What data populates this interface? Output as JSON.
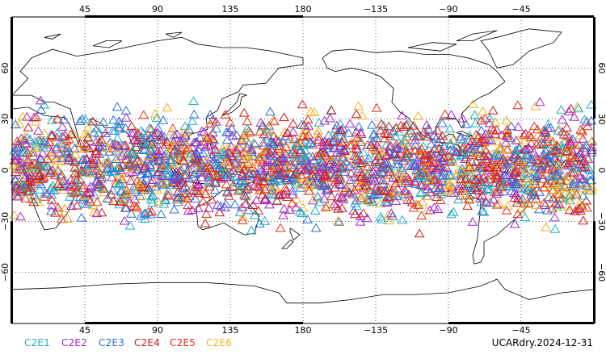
{
  "map": {
    "projection": "cylindrical-equidistant",
    "center_longitude": 180,
    "lat_range": [
      -90,
      90
    ],
    "lon_range": [
      0,
      360
    ],
    "grid": "dotted",
    "coastline_color": "#000000",
    "top_ticks": [
      "45",
      "90",
      "135",
      "180",
      "−135",
      "−90",
      "−45"
    ],
    "bottom_ticks": [
      "45",
      "90",
      "135",
      "180",
      "−135",
      "−90",
      "−45"
    ],
    "left_ticks": [
      "60",
      "30",
      "0",
      "−30",
      "−60"
    ],
    "right_ticks": [
      "60",
      "30",
      "0",
      "−30",
      "−60"
    ],
    "tick_longitudes": [
      45,
      90,
      135,
      180,
      225,
      270,
      315
    ],
    "tick_latitudes": [
      60,
      30,
      0,
      -30,
      -60
    ]
  },
  "legend": {
    "items": [
      {
        "label": "C2E1",
        "color": "#1ab0c4"
      },
      {
        "label": "C2E2",
        "color": "#a026c8"
      },
      {
        "label": "C2E3",
        "color": "#2a6fe0"
      },
      {
        "label": "C2E4",
        "color": "#d01818"
      },
      {
        "label": "C2E5",
        "color": "#e03018"
      },
      {
        "label": "C2E6",
        "color": "#f0b020"
      }
    ]
  },
  "footer": {
    "label": "UCARdry.2024-12-31"
  },
  "observations": {
    "marker": "triangle",
    "lat_band": [
      -40,
      45
    ]
  }
}
